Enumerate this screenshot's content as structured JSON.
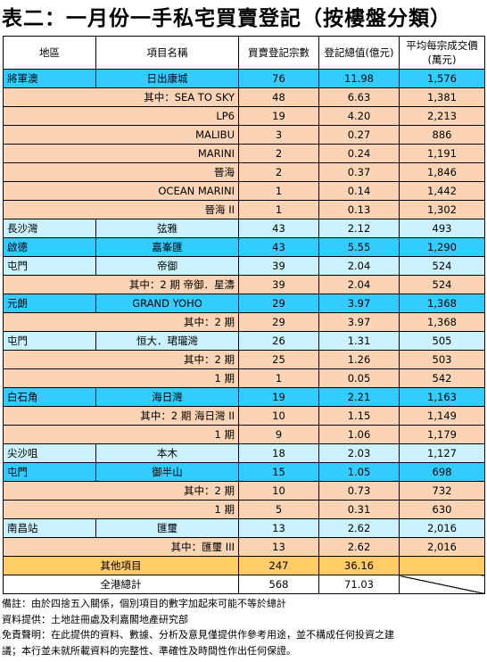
{
  "title": "表二：一月份一手私宅買賣登記（按樓盤分類）",
  "headers": {
    "district": "地區",
    "project": "項目名稱",
    "count": "買賣登記宗數",
    "value": "登記總值(億元)",
    "avg_line1": "平均每宗成交價",
    "avg_line2": "(萬元)"
  },
  "rows": [
    {
      "district": "將軍澳",
      "project": "日出康城",
      "count": "76",
      "value": "11.98",
      "avg": "1,576"
    },
    {
      "district": "",
      "project": "其中：SEA TO SKY",
      "count": "48",
      "value": "6.63",
      "avg": "1,381"
    },
    {
      "district": "",
      "project": "LP6",
      "count": "19",
      "value": "4.20",
      "avg": "2,213"
    },
    {
      "district": "",
      "project": "MALIBU",
      "count": "3",
      "value": "0.27",
      "avg": "886"
    },
    {
      "district": "",
      "project": "MARINI",
      "count": "2",
      "value": "0.24",
      "avg": "1,191"
    },
    {
      "district": "",
      "project": "晉海",
      "count": "2",
      "value": "0.37",
      "avg": "1,846"
    },
    {
      "district": "",
      "project": "OCEAN MARINI",
      "count": "1",
      "value": "0.14",
      "avg": "1,442"
    },
    {
      "district": "",
      "project": "晉海 II",
      "count": "1",
      "value": "0.13",
      "avg": "1,302"
    },
    {
      "district": "長沙灣",
      "project": "弦雅",
      "count": "43",
      "value": "2.12",
      "avg": "493"
    },
    {
      "district": "啟德",
      "project": "嘉峯匯",
      "count": "43",
      "value": "5.55",
      "avg": "1,290"
    },
    {
      "district": "屯門",
      "project": "帝御",
      "count": "39",
      "value": "2.04",
      "avg": "524"
    },
    {
      "district": "",
      "project": "其中：2 期  帝御．星濤",
      "count": "39",
      "value": "2.04",
      "avg": "524"
    },
    {
      "district": "元朗",
      "project": "GRAND YOHO",
      "count": "29",
      "value": "3.97",
      "avg": "1,368"
    },
    {
      "district": "",
      "project": "其中：2 期",
      "count": "29",
      "value": "3.97",
      "avg": "1,368"
    },
    {
      "district": "屯門",
      "project": "恒大．珺瓏灣",
      "count": "26",
      "value": "1.31",
      "avg": "505"
    },
    {
      "district": "",
      "project": "其中：2 期",
      "count": "25",
      "value": "1.26",
      "avg": "503"
    },
    {
      "district": "",
      "project": "1 期",
      "count": "1",
      "value": "0.05",
      "avg": "542"
    },
    {
      "district": "白石角",
      "project": "海日灣",
      "count": "19",
      "value": "2.21",
      "avg": "1,163"
    },
    {
      "district": "",
      "project": "其中：2 期  海日灣 II",
      "count": "10",
      "value": "1.15",
      "avg": "1,149"
    },
    {
      "district": "",
      "project": "1 期",
      "count": "9",
      "value": "1.06",
      "avg": "1,179"
    },
    {
      "district": "尖沙咀",
      "project": "本木",
      "count": "18",
      "value": "2.03",
      "avg": "1,127"
    },
    {
      "district": "屯門",
      "project": "御半山",
      "count": "15",
      "value": "1.05",
      "avg": "698"
    },
    {
      "district": "",
      "project": "其中：2 期",
      "count": "10",
      "value": "0.73",
      "avg": "732"
    },
    {
      "district": "",
      "project": "1 期",
      "count": "5",
      "value": "0.31",
      "avg": "630"
    },
    {
      "district": "南昌站",
      "project": "匯璽",
      "count": "13",
      "value": "2.62",
      "avg": "2,016"
    },
    {
      "district": "",
      "project": "其中：匯璽 III",
      "count": "13",
      "value": "2.62",
      "avg": "2,016"
    }
  ],
  "other": {
    "label": "其他項目",
    "count": "247",
    "value": "36.16"
  },
  "total": {
    "label": "全港總計",
    "count": "568",
    "value": "71.03"
  },
  "notes": [
    "備註：由於四捨五入關係，個別項目的數字加起來可能不等於總計",
    "資料提供：土地註冊處及利嘉閣地產研究部",
    "免責聲明：在此提供的資料、數據、分析及意見僅提供作參考用途，並不構成任何投資之建",
    "議；本行並未就所載資料的完整性、準確性及時間性作出任何保證。"
  ],
  "colors": {
    "blue": "#33ccff",
    "peach": "#fad4b4",
    "light_blue": "#ccf2ff",
    "orange": "#ffcc66"
  }
}
